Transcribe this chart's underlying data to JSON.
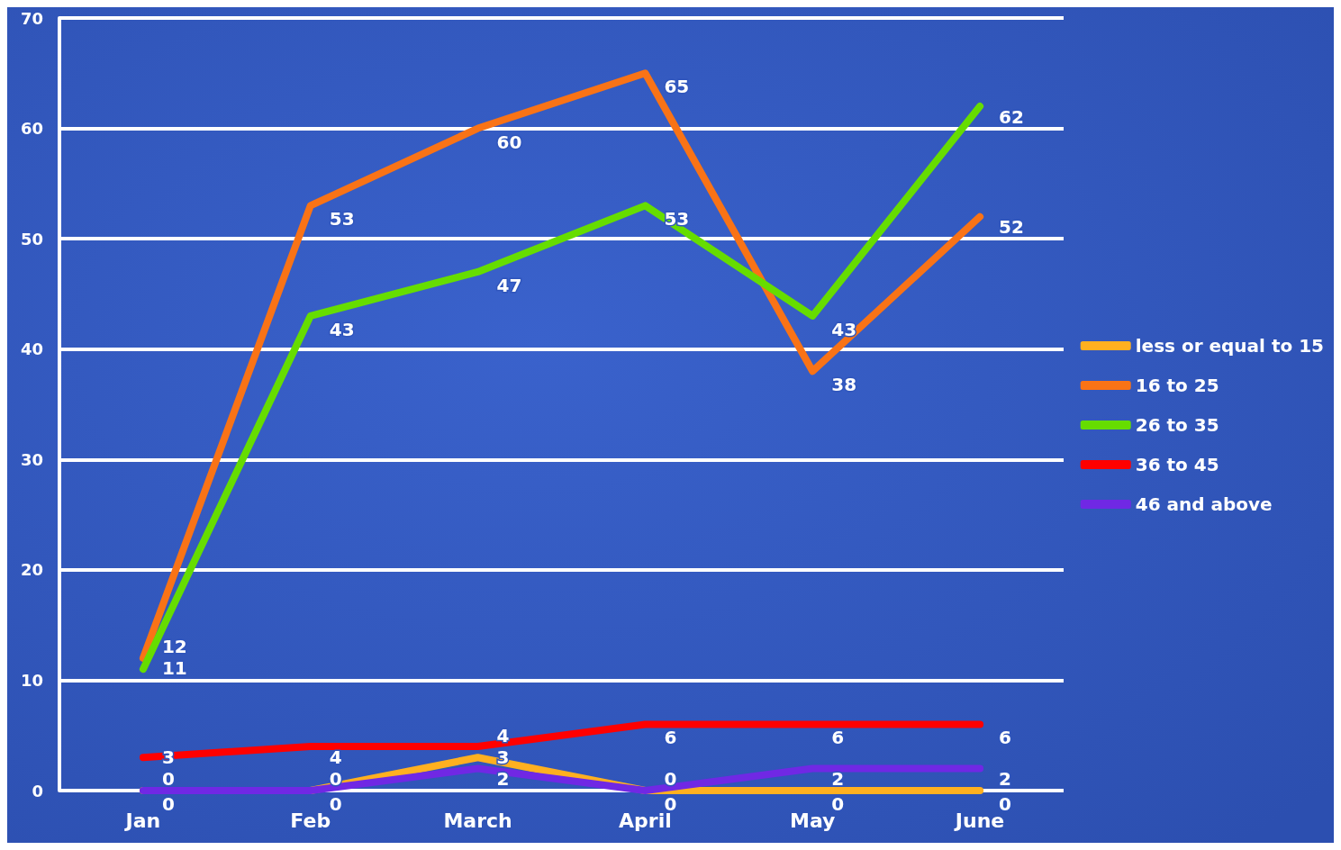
{
  "chart_data": {
    "type": "line",
    "categories": [
      "Jan",
      "Feb",
      "March",
      "April",
      "May",
      "June"
    ],
    "series": [
      {
        "name": "less or equal to 15",
        "color": "#ffb020",
        "values": [
          0,
          0,
          3,
          0,
          0,
          0
        ]
      },
      {
        "name": "16 to 25",
        "color": "#f97316",
        "values": [
          12,
          53,
          60,
          65,
          38,
          52
        ]
      },
      {
        "name": "26 to 35",
        "color": "#66dd00",
        "values": [
          11,
          43,
          47,
          53,
          43,
          62
        ]
      },
      {
        "name": "36 to 45",
        "color": "#ff0000",
        "values": [
          3,
          4,
          4,
          6,
          6,
          6
        ]
      },
      {
        "name": "46 and above",
        "color": "#7028e4",
        "values": [
          0,
          0,
          2,
          0,
          2,
          2
        ]
      }
    ],
    "ylim": [
      0,
      70
    ],
    "yticks": [
      0,
      10,
      20,
      30,
      40,
      50,
      60,
      70
    ],
    "grid": "y",
    "legend": "right",
    "marker": "none",
    "line_style": "solid",
    "data_labels": true
  }
}
